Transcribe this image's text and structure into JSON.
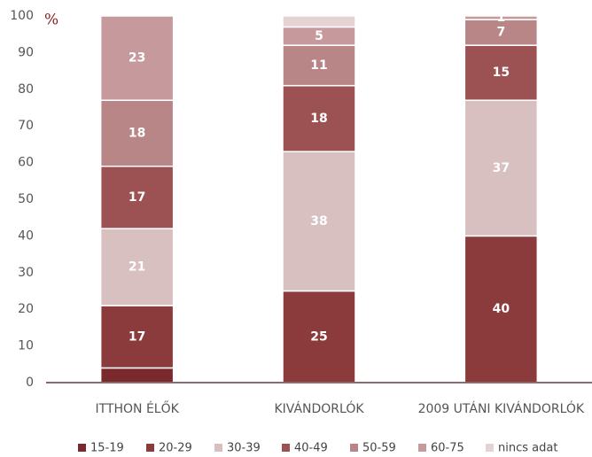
{
  "chart_data": {
    "type": "stacked_bar",
    "y_unit": "%",
    "categories": [
      "ITTHON ÉLŐK",
      "KIVÁNDORLÓK",
      "2009 UTÁNI KIVÁNDORLÓK"
    ],
    "series": [
      {
        "name": "15-19",
        "color": "#7a2a2c",
        "values": [
          4,
          0,
          0
        ],
        "value_labels": [
          null,
          null,
          null
        ]
      },
      {
        "name": "20-29",
        "color": "#8c3b3c",
        "values": [
          17,
          25,
          40
        ],
        "value_labels": [
          "17",
          "25",
          "40"
        ]
      },
      {
        "name": "30-39",
        "color": "#d8bfc0",
        "values": [
          21,
          38,
          37
        ],
        "value_labels": [
          "21",
          "38",
          "37"
        ]
      },
      {
        "name": "40-49",
        "color": "#9c5253",
        "values": [
          17,
          18,
          15
        ],
        "value_labels": [
          "17",
          "18",
          "15"
        ]
      },
      {
        "name": "50-59",
        "color": "#b98688",
        "values": [
          18,
          11,
          7
        ],
        "value_labels": [
          "18",
          "11",
          "7"
        ]
      },
      {
        "name": "60-75",
        "color": "#c69a9c",
        "values": [
          23,
          5,
          1
        ],
        "value_labels": [
          "23",
          "5",
          "1"
        ]
      },
      {
        "name": "nincs adat",
        "color": "#e5d2d3",
        "values": [
          0,
          3,
          0
        ],
        "value_labels": [
          null,
          null,
          null
        ]
      }
    ],
    "ylim": [
      0,
      100
    ],
    "yticks": [
      0,
      10,
      20,
      30,
      40,
      50,
      60,
      70,
      80,
      90,
      100
    ],
    "grid": false,
    "legend": "bottom"
  }
}
